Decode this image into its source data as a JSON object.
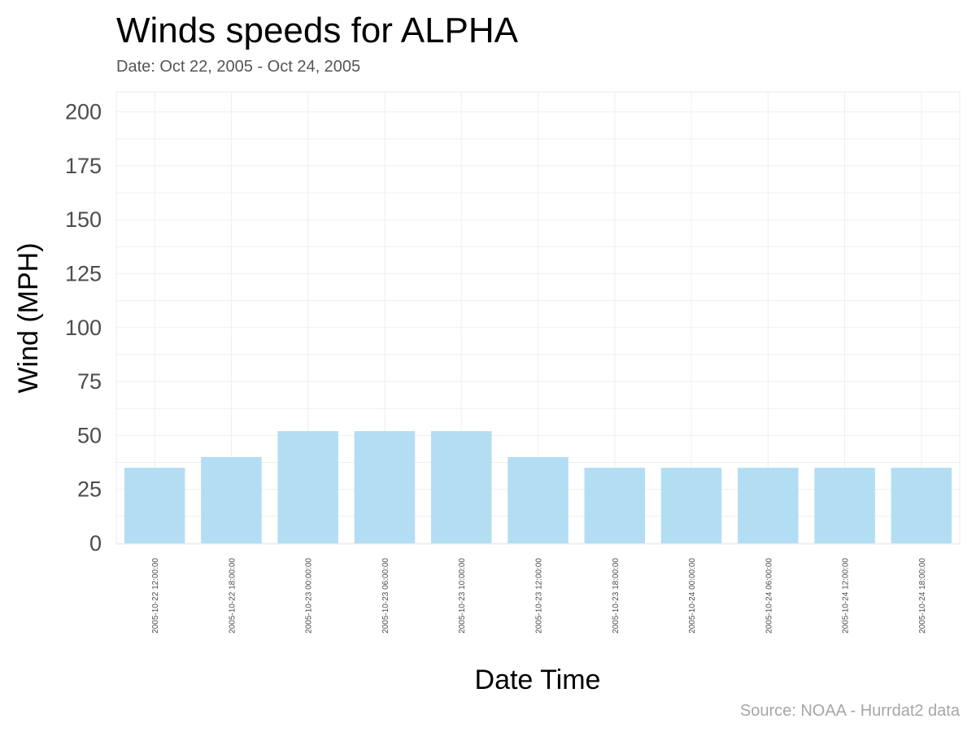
{
  "chart_data": {
    "type": "bar",
    "title": "Winds speeds for ALPHA",
    "subtitle": "Date:  Oct 22, 2005 - Oct 24, 2005",
    "xlabel": "Date Time",
    "ylabel": "Wind (MPH)",
    "caption": "Source: NOAA - Hurrdat2 data",
    "categories": [
      "2005-10-22 12:00:00",
      "2005-10-22 18:00:00",
      "2005-10-23 00:00:00",
      "2005-10-23 06:00:00",
      "2005-10-23 10:00:00",
      "2005-10-23 12:00:00",
      "2005-10-23 18:00:00",
      "2005-10-24 00:00:00",
      "2005-10-24 06:00:00",
      "2005-10-24 12:00:00",
      "2005-10-24 18:00:00"
    ],
    "values": [
      35,
      40,
      52,
      52,
      52,
      40,
      35,
      35,
      35,
      35,
      35
    ],
    "ylim": [
      0,
      210
    ],
    "yticks": [
      0,
      25,
      50,
      75,
      100,
      125,
      150,
      175,
      200
    ],
    "grid": true,
    "legend": "none",
    "bar_color": "#b3ddf2"
  }
}
